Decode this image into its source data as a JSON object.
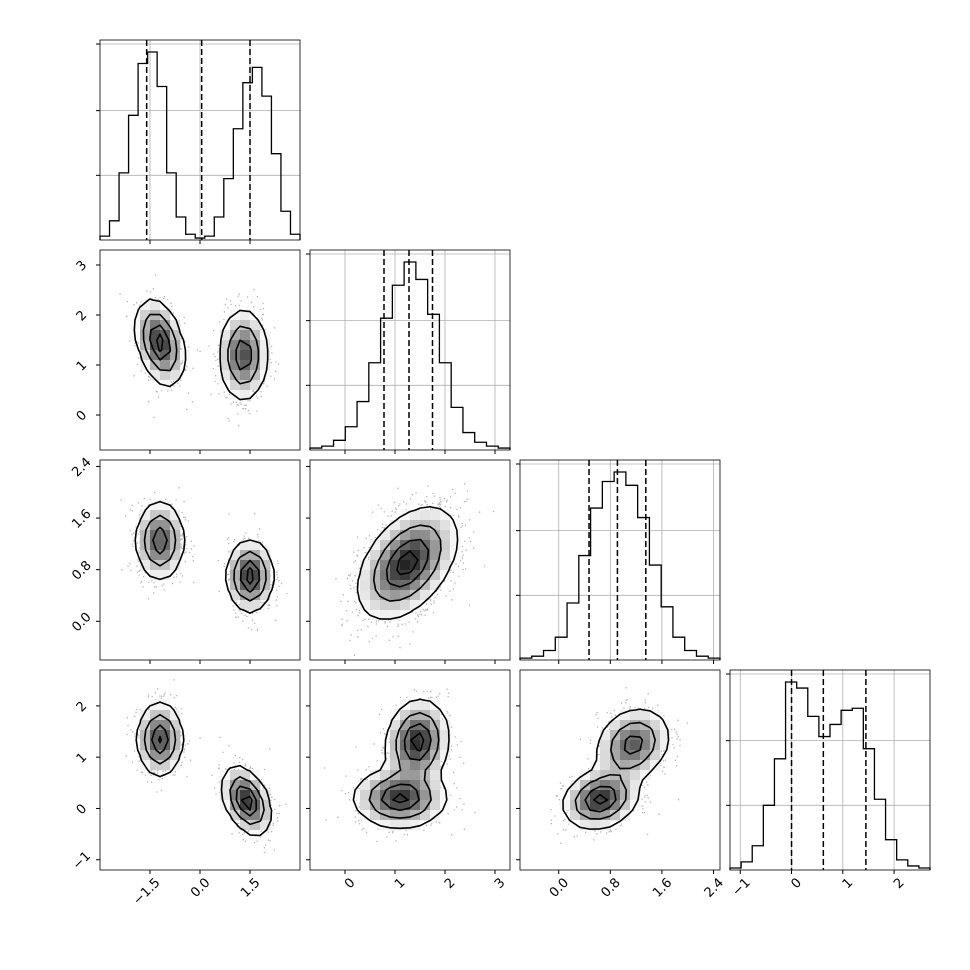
{
  "chart_data": {
    "type": "corner",
    "grid": true,
    "dims": [
      {
        "range": [
          -3.0,
          3.0
        ],
        "ticks": [
          -1.5,
          0.0,
          1.5
        ],
        "tick_labels": [
          "−1.5",
          "0.0",
          "1.5"
        ],
        "quantiles": [
          -1.6,
          0.05,
          1.5
        ]
      },
      {
        "range": [
          -0.7,
          3.3
        ],
        "ticks": [
          0,
          1,
          2,
          3
        ],
        "tick_labels": [
          "0",
          "1",
          "2",
          "3"
        ],
        "quantiles": [
          0.78,
          1.28,
          1.75
        ]
      },
      {
        "range": [
          -0.6,
          2.5
        ],
        "ticks": [
          0.0,
          0.8,
          1.6,
          2.4
        ],
        "tick_labels": [
          "0.0",
          "0.8",
          "1.6",
          "2.4"
        ],
        "quantiles": [
          0.47,
          0.91,
          1.35
        ]
      },
      {
        "range": [
          -1.2,
          2.7
        ],
        "ticks": [
          -1,
          0,
          1,
          2
        ],
        "tick_labels": [
          "−1",
          "0",
          "1",
          "2"
        ],
        "quantiles": [
          0.0,
          0.62,
          1.45
        ]
      }
    ],
    "histograms": [
      {
        "dim": 0,
        "counts": [
          0.02,
          0.1,
          0.35,
          0.65,
          0.92,
          0.98,
          0.8,
          0.35,
          0.12,
          0.03,
          0.01,
          0.02,
          0.12,
          0.32,
          0.58,
          0.82,
          0.9,
          0.75,
          0.45,
          0.15,
          0.03
        ]
      },
      {
        "dim": 1,
        "counts": [
          0.01,
          0.02,
          0.05,
          0.12,
          0.25,
          0.45,
          0.68,
          0.85,
          0.97,
          0.88,
          0.7,
          0.45,
          0.22,
          0.09,
          0.04,
          0.02,
          0.01
        ]
      },
      {
        "dim": 2,
        "counts": [
          0.01,
          0.02,
          0.05,
          0.12,
          0.3,
          0.55,
          0.8,
          0.94,
          0.99,
          0.92,
          0.75,
          0.5,
          0.28,
          0.12,
          0.05,
          0.02,
          0.01
        ]
      },
      {
        "dim": 3,
        "counts": [
          0.01,
          0.04,
          0.12,
          0.32,
          0.55,
          0.93,
          0.9,
          0.76,
          0.66,
          0.72,
          0.79,
          0.8,
          0.6,
          0.35,
          0.15,
          0.05,
          0.02,
          0.01
        ]
      }
    ],
    "pair_panels": [
      {
        "row": 1,
        "col": 0,
        "blobs": [
          {
            "mean": [
              -1.2,
              1.45
            ],
            "sd": [
              0.35,
              0.42
            ],
            "rho": -0.35,
            "w": 0.5
          },
          {
            "mean": [
              1.3,
              1.2
            ],
            "sd": [
              0.35,
              0.45
            ],
            "rho": 0.0,
            "w": 0.5
          }
        ]
      },
      {
        "row": 2,
        "col": 0,
        "blobs": [
          {
            "mean": [
              -1.2,
              1.25
            ],
            "sd": [
              0.35,
              0.3
            ],
            "rho": 0.0,
            "w": 0.5
          },
          {
            "mean": [
              1.5,
              0.7
            ],
            "sd": [
              0.33,
              0.27
            ],
            "rho": 0.0,
            "w": 0.5
          }
        ]
      },
      {
        "row": 2,
        "col": 1,
        "blobs": [
          {
            "mean": [
              1.25,
              0.9
            ],
            "sd": [
              0.48,
              0.42
            ],
            "rho": 0.45,
            "w": 1.0
          }
        ]
      },
      {
        "row": 3,
        "col": 0,
        "blobs": [
          {
            "mean": [
              -1.2,
              1.35
            ],
            "sd": [
              0.33,
              0.35
            ],
            "rho": 0.0,
            "w": 0.5
          },
          {
            "mean": [
              1.4,
              0.15
            ],
            "sd": [
              0.35,
              0.32
            ],
            "rho": -0.4,
            "w": 0.5
          }
        ]
      },
      {
        "row": 3,
        "col": 1,
        "blobs": [
          {
            "mean": [
              1.45,
              1.3
            ],
            "sd": [
              0.3,
              0.4
            ],
            "rho": 0.1,
            "w": 0.5
          },
          {
            "mean": [
              1.1,
              0.2
            ],
            "sd": [
              0.45,
              0.28
            ],
            "rho": 0.0,
            "w": 0.5
          }
        ]
      },
      {
        "row": 3,
        "col": 2,
        "blobs": [
          {
            "mean": [
              1.15,
              1.25
            ],
            "sd": [
              0.28,
              0.35
            ],
            "rho": 0.2,
            "w": 0.5
          },
          {
            "mean": [
              0.65,
              0.18
            ],
            "sd": [
              0.28,
              0.28
            ],
            "rho": 0.2,
            "w": 0.5
          }
        ]
      }
    ]
  }
}
